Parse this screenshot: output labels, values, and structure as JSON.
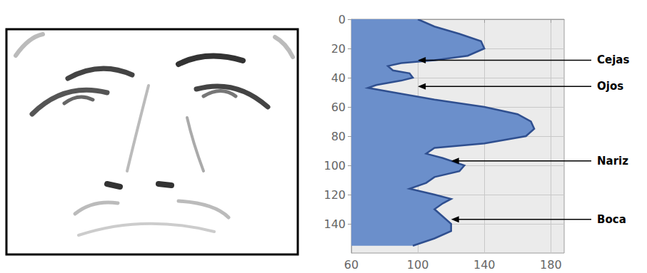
{
  "chart_data": {
    "type": "area",
    "x": [
      100,
      110,
      125,
      138,
      140,
      130,
      110,
      90,
      82,
      85,
      95,
      97,
      90,
      75,
      70,
      85,
      110,
      140,
      160,
      168,
      170,
      165,
      140,
      110,
      105,
      115,
      128,
      125,
      110,
      105,
      95,
      110,
      120,
      115,
      110,
      115,
      120,
      120,
      110,
      97
    ],
    "y": [
      0,
      5,
      10,
      15,
      20,
      25,
      28,
      30,
      32,
      35,
      37,
      40,
      42,
      45,
      47,
      50,
      55,
      60,
      65,
      70,
      75,
      80,
      85,
      88,
      92,
      95,
      100,
      104,
      108,
      112,
      116,
      120,
      123,
      126,
      130,
      135,
      140,
      145,
      150,
      155
    ],
    "color": "#6b8fcb",
    "xlim": [
      60,
      188
    ],
    "xticks": [
      60,
      100,
      140,
      180
    ],
    "ylim": [
      0,
      160
    ],
    "yticks": [
      0,
      20,
      40,
      60,
      80,
      100,
      120,
      140
    ],
    "grid": true,
    "annotations": [
      {
        "text": "Cejas",
        "x": 100,
        "y": 28
      },
      {
        "text": "Ojos",
        "x": 100,
        "y": 46
      },
      {
        "text": "Nariz",
        "x": 120,
        "y": 97
      },
      {
        "text": "Boca",
        "x": 120,
        "y": 137
      }
    ]
  }
}
